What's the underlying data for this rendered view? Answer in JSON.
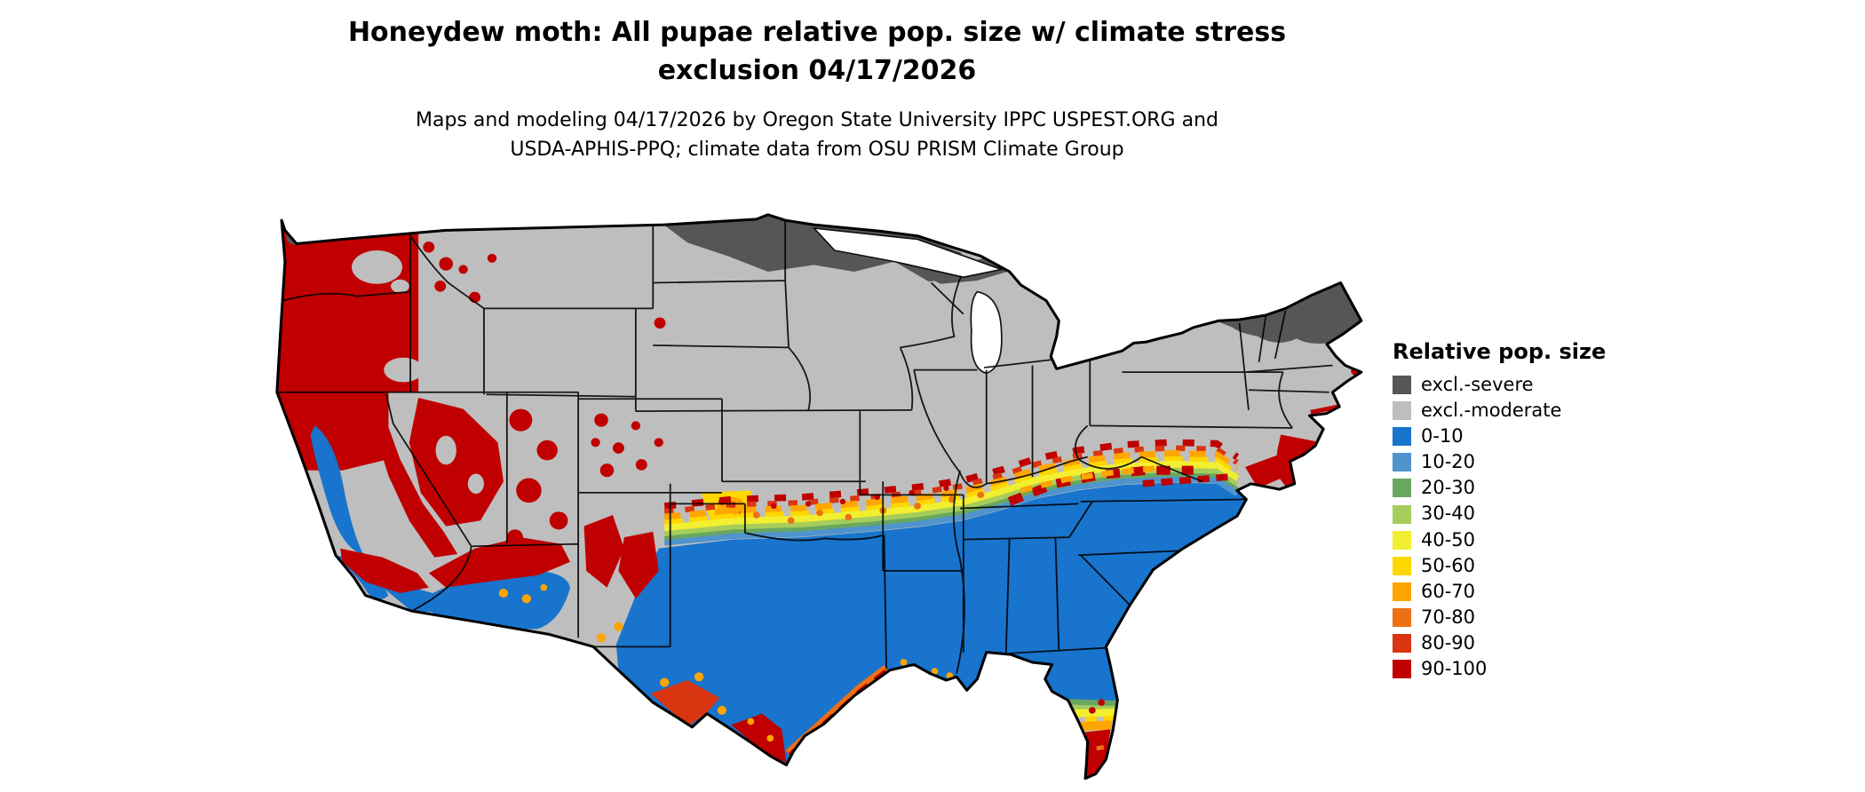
{
  "title": {
    "line1": "Honeydew moth: All pupae relative pop. size w/ climate stress",
    "line2": "exclusion 04/17/2026"
  },
  "subtitle": {
    "line1": "Maps and modeling 04/17/2026 by Oregon State University IPPC USPEST.ORG and",
    "line2": "USDA-APHIS-PPQ; climate data from OSU PRISM Climate Group"
  },
  "legend": {
    "title": "Relative pop. size",
    "items": [
      {
        "label": "excl.-severe",
        "color": "#565656"
      },
      {
        "label": "excl.-moderate",
        "color": "#bebebe"
      },
      {
        "label": "0-10",
        "color": "#1874cd"
      },
      {
        "label": "10-20",
        "color": "#4f94cd"
      },
      {
        "label": "20-30",
        "color": "#69a761"
      },
      {
        "label": "30-40",
        "color": "#a6cd5a"
      },
      {
        "label": "40-50",
        "color": "#f2ee30"
      },
      {
        "label": "50-60",
        "color": "#ffd700"
      },
      {
        "label": "60-70",
        "color": "#ffa500"
      },
      {
        "label": "70-80",
        "color": "#ec7014"
      },
      {
        "label": "80-90",
        "color": "#d93511"
      },
      {
        "label": "90-100",
        "color": "#c00000"
      }
    ]
  }
}
